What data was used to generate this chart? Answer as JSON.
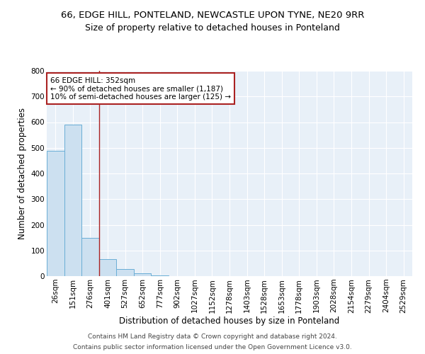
{
  "title1": "66, EDGE HILL, PONTELAND, NEWCASTLE UPON TYNE, NE20 9RR",
  "title2": "Size of property relative to detached houses in Ponteland",
  "xlabel": "Distribution of detached houses by size in Ponteland",
  "ylabel": "Number of detached properties",
  "bar_labels": [
    "26sqm",
    "151sqm",
    "276sqm",
    "401sqm",
    "527sqm",
    "652sqm",
    "777sqm",
    "902sqm",
    "1027sqm",
    "1152sqm",
    "1278sqm",
    "1403sqm",
    "1528sqm",
    "1653sqm",
    "1778sqm",
    "1903sqm",
    "2028sqm",
    "2154sqm",
    "2279sqm",
    "2404sqm",
    "2529sqm"
  ],
  "bar_values": [
    487,
    591,
    149,
    65,
    28,
    10,
    3,
    1,
    0,
    0,
    0,
    0,
    0,
    0,
    0,
    0,
    0,
    0,
    0,
    0,
    0
  ],
  "bar_color": "#cce0f0",
  "bar_edge_color": "#6aaed6",
  "annotation_text": "66 EDGE HILL: 352sqm\n← 90% of detached houses are smaller (1,187)\n10% of semi-detached houses are larger (125) →",
  "vline_x": 2.5,
  "vline_color": "#aa2222",
  "annotation_box_edge": "#aa2222",
  "ylim": [
    0,
    800
  ],
  "yticks": [
    0,
    100,
    200,
    300,
    400,
    500,
    600,
    700,
    800
  ],
  "footer1": "Contains HM Land Registry data © Crown copyright and database right 2024.",
  "footer2": "Contains public sector information licensed under the Open Government Licence v3.0.",
  "plot_bg_color": "#e8f0f8",
  "title1_fontsize": 9.5,
  "title2_fontsize": 9,
  "axis_label_fontsize": 8.5,
  "tick_fontsize": 7.5,
  "footer_fontsize": 6.5,
  "annotation_fontsize": 7.5
}
